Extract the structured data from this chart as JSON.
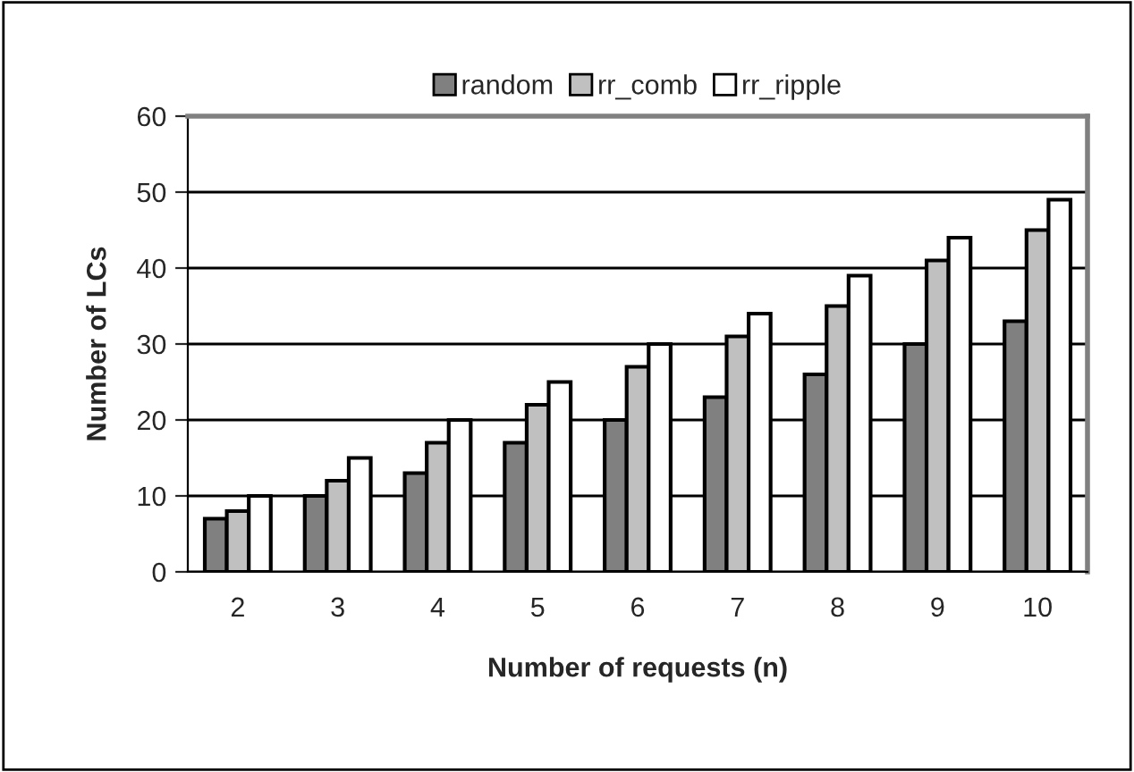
{
  "chart_data": {
    "type": "bar",
    "xlabel": "Number of requests (n)",
    "ylabel": "Number of LCs",
    "categories": [
      "2",
      "3",
      "4",
      "5",
      "6",
      "7",
      "8",
      "9",
      "10"
    ],
    "series": [
      {
        "name": "random",
        "color": "#808080",
        "values": [
          7,
          10,
          13,
          17,
          20,
          23,
          26,
          30,
          33
        ]
      },
      {
        "name": "rr_comb",
        "color": "#c0c0c0",
        "values": [
          8,
          12,
          17,
          22,
          27,
          31,
          35,
          41,
          45
        ]
      },
      {
        "name": "rr_ripple",
        "color": "#ffffff",
        "values": [
          10,
          15,
          20,
          25,
          30,
          34,
          39,
          44,
          49
        ]
      }
    ],
    "ylim": [
      0,
      60
    ],
    "yticks": [
      0,
      10,
      20,
      30,
      40,
      50,
      60
    ],
    "grid": "y",
    "legend": "top"
  }
}
